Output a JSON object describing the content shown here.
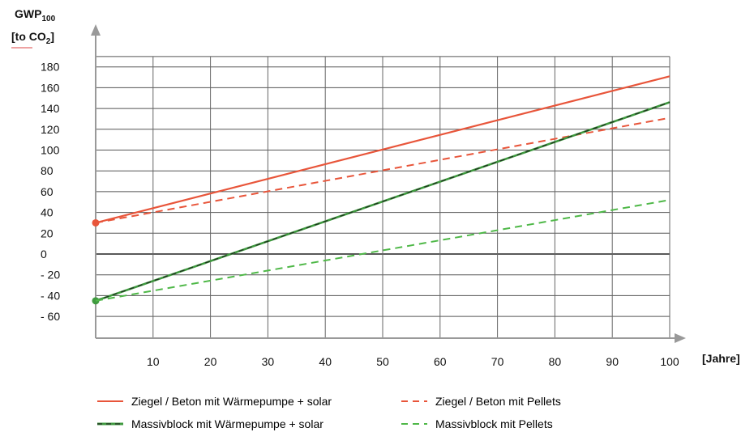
{
  "chart_data": {
    "type": "line",
    "ylabel_line1": "GWP",
    "ylabel_sub": "100",
    "ylabel_line2_pre": "[to CO",
    "ylabel_line2_sub": "2",
    "ylabel_line2_post": "]",
    "xlabel": "[Jahre]",
    "xlim": [
      0,
      100
    ],
    "ylim": [
      -70,
      195
    ],
    "x_ticks": [
      10,
      20,
      30,
      40,
      50,
      60,
      70,
      80,
      90,
      100
    ],
    "y_ticks": [
      180,
      160,
      140,
      120,
      100,
      80,
      60,
      40,
      20,
      0,
      -20,
      -40,
      -60
    ],
    "y_tick_labels": [
      "180",
      "160",
      "140",
      "120",
      "100",
      "80",
      "60",
      "40",
      "20",
      "0",
      "- 20",
      "- 40",
      "- 60"
    ],
    "grid_x": [
      0,
      10,
      20,
      30,
      40,
      50,
      60,
      70,
      80,
      90,
      100
    ],
    "grid_y": [
      190,
      180,
      160,
      140,
      120,
      100,
      80,
      60,
      40,
      20,
      0,
      -20,
      -40,
      -60
    ],
    "grid": true,
    "legend_position": "bottom",
    "series": [
      {
        "name": "Ziegel / Beton mit Wärmepumpe + solar",
        "x": [
          0,
          100
        ],
        "values": [
          30,
          171
        ],
        "color": "#e8553a",
        "style": "solid",
        "marker_start": true
      },
      {
        "name": "Ziegel / Beton mit Pellets",
        "x": [
          0,
          100
        ],
        "values": [
          30,
          131
        ],
        "color": "#e8553a",
        "style": "dashed",
        "marker_start": false
      },
      {
        "name": "Massivblock mit Wärmepumpe + solar",
        "x": [
          0,
          100
        ],
        "values": [
          -45,
          146
        ],
        "color": "#3f9a3f",
        "style": "solid-dark",
        "marker_start": true
      },
      {
        "name": "Massivblock mit Pellets",
        "x": [
          0,
          100
        ],
        "values": [
          -45,
          52
        ],
        "color": "#4fb848",
        "style": "dashed",
        "marker_start": false
      }
    ]
  }
}
